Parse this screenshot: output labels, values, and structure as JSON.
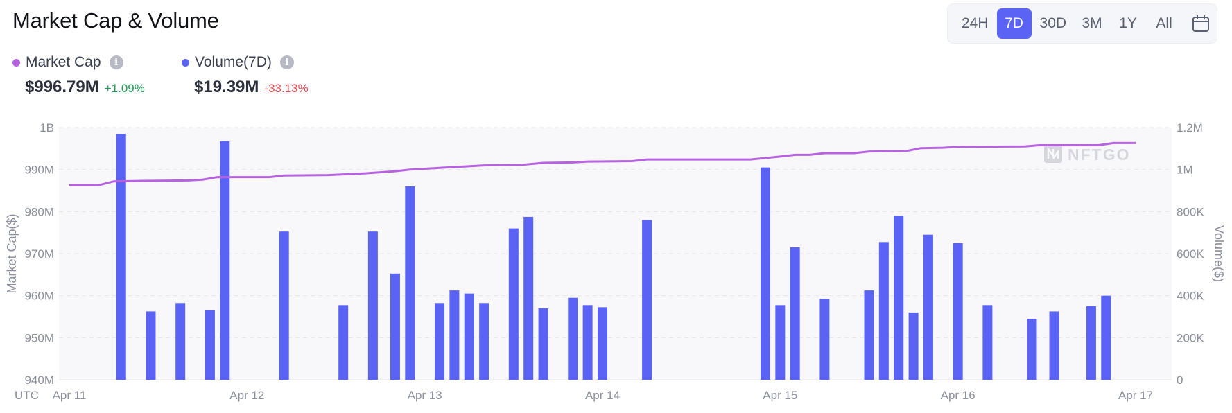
{
  "title": "Market Cap & Volume",
  "range_options": [
    "24H",
    "7D",
    "30D",
    "3M",
    "1Y",
    "All"
  ],
  "active_range": "7D",
  "legend": {
    "market_cap": {
      "label": "Market Cap",
      "value": "$996.79M",
      "change": "+1.09%",
      "color": "#b762e0"
    },
    "volume": {
      "label": "Volume(7D)",
      "value": "$19.39M",
      "change": "-33.13%",
      "color": "#5b63f5"
    }
  },
  "watermark": "NFTGO",
  "timezone_label": "UTC",
  "chart_data": {
    "type": "bar+line",
    "x_tick_labels": [
      "Apr 11",
      "Apr 12",
      "Apr 13",
      "Apr 14",
      "Apr 15",
      "Apr 16",
      "Apr 17"
    ],
    "y_left": {
      "label": "Market Cap($)",
      "ticks": [
        "940M",
        "950M",
        "960M",
        "970M",
        "980M",
        "990M",
        "1B"
      ],
      "min": 940,
      "max": 1000,
      "unit": "M"
    },
    "y_right": {
      "label": "Volume($)",
      "ticks": [
        "0",
        "200K",
        "400K",
        "600K",
        "800K",
        "1M",
        "1.2M"
      ],
      "min": 0,
      "max": 1200,
      "unit": "K"
    },
    "x_range_hours": [
      0,
      144
    ],
    "volume_series": {
      "name": "Volume(7D)",
      "points": [
        {
          "h": 7,
          "v": 1170
        },
        {
          "h": 11,
          "v": 325
        },
        {
          "h": 15,
          "v": 365
        },
        {
          "h": 19,
          "v": 330
        },
        {
          "h": 21,
          "v": 1135
        },
        {
          "h": 29,
          "v": 705
        },
        {
          "h": 37,
          "v": 355
        },
        {
          "h": 41,
          "v": 705
        },
        {
          "h": 44,
          "v": 505
        },
        {
          "h": 46,
          "v": 920
        },
        {
          "h": 50,
          "v": 365
        },
        {
          "h": 52,
          "v": 425
        },
        {
          "h": 54,
          "v": 410
        },
        {
          "h": 56,
          "v": 365
        },
        {
          "h": 60,
          "v": 720
        },
        {
          "h": 62,
          "v": 775
        },
        {
          "h": 64,
          "v": 340
        },
        {
          "h": 68,
          "v": 390
        },
        {
          "h": 70,
          "v": 355
        },
        {
          "h": 72,
          "v": 345
        },
        {
          "h": 78,
          "v": 760
        },
        {
          "h": 94,
          "v": 1010
        },
        {
          "h": 96,
          "v": 355
        },
        {
          "h": 98,
          "v": 630
        },
        {
          "h": 102,
          "v": 385
        },
        {
          "h": 108,
          "v": 425
        },
        {
          "h": 110,
          "v": 655
        },
        {
          "h": 112,
          "v": 780
        },
        {
          "h": 114,
          "v": 320
        },
        {
          "h": 116,
          "v": 690
        },
        {
          "h": 120,
          "v": 650
        },
        {
          "h": 124,
          "v": 355
        },
        {
          "h": 130,
          "v": 290
        },
        {
          "h": 133,
          "v": 325
        },
        {
          "h": 138,
          "v": 350
        },
        {
          "h": 140,
          "v": 400
        }
      ]
    },
    "market_cap_series": {
      "name": "Market Cap",
      "points": [
        {
          "h": 0,
          "v": 986.3
        },
        {
          "h": 4,
          "v": 986.3
        },
        {
          "h": 6,
          "v": 987.2
        },
        {
          "h": 10,
          "v": 987.3
        },
        {
          "h": 16,
          "v": 987.4
        },
        {
          "h": 18,
          "v": 987.6
        },
        {
          "h": 20,
          "v": 988.2
        },
        {
          "h": 27,
          "v": 988.2
        },
        {
          "h": 29,
          "v": 988.6
        },
        {
          "h": 35,
          "v": 988.7
        },
        {
          "h": 40,
          "v": 989.1
        },
        {
          "h": 44,
          "v": 989.6
        },
        {
          "h": 46,
          "v": 990.0
        },
        {
          "h": 51,
          "v": 990.5
        },
        {
          "h": 56,
          "v": 991.0
        },
        {
          "h": 61,
          "v": 991.1
        },
        {
          "h": 64,
          "v": 991.6
        },
        {
          "h": 68,
          "v": 991.7
        },
        {
          "h": 70,
          "v": 991.9
        },
        {
          "h": 76,
          "v": 992.0
        },
        {
          "h": 78,
          "v": 992.4
        },
        {
          "h": 92,
          "v": 992.4
        },
        {
          "h": 96,
          "v": 993.1
        },
        {
          "h": 98,
          "v": 993.5
        },
        {
          "h": 100,
          "v": 993.5
        },
        {
          "h": 102,
          "v": 993.9
        },
        {
          "h": 106,
          "v": 993.9
        },
        {
          "h": 108,
          "v": 994.3
        },
        {
          "h": 113,
          "v": 994.4
        },
        {
          "h": 115,
          "v": 995.1
        },
        {
          "h": 118,
          "v": 995.2
        },
        {
          "h": 120,
          "v": 995.4
        },
        {
          "h": 129,
          "v": 995.5
        },
        {
          "h": 131,
          "v": 995.8
        },
        {
          "h": 139,
          "v": 995.8
        },
        {
          "h": 141,
          "v": 996.3
        },
        {
          "h": 144,
          "v": 996.3
        }
      ]
    },
    "grid": true,
    "legend_position": "top-left"
  }
}
